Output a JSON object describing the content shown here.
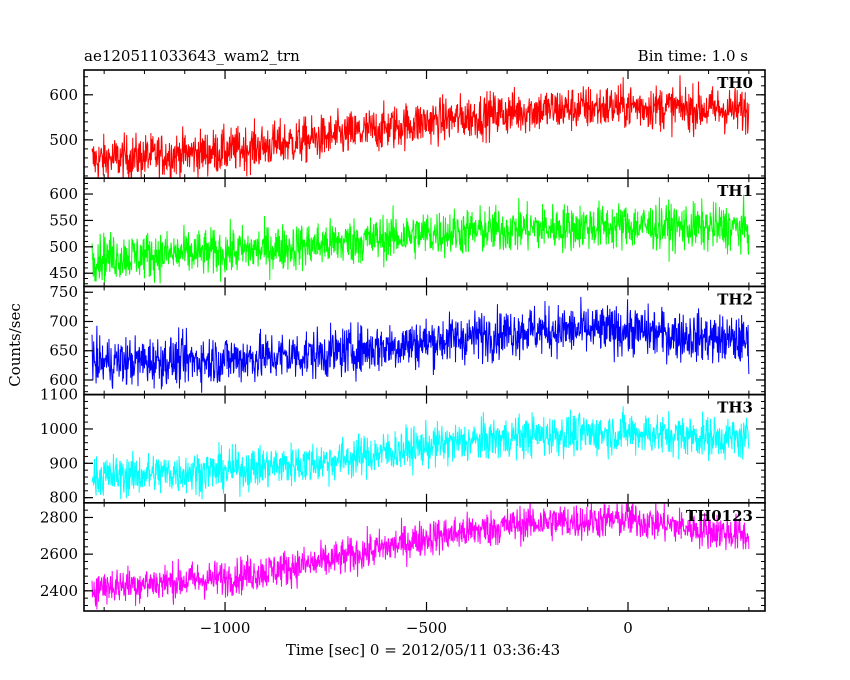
{
  "title_left": "ae120511033643_wam2_trn",
  "title_right": "Bin time: 1.0 s",
  "xlabel": "Time [sec] 0 = 2012/05/11 03:36:43",
  "ylabel": "Counts/sec",
  "chart_data": {
    "type": "line",
    "x_range": [
      -1350,
      340
    ],
    "x_ticks": [
      -1000,
      -500,
      0
    ],
    "x_tick_labels": [
      "−1000",
      "−500",
      "0"
    ],
    "x_data_range": [
      -1330,
      300
    ],
    "bin_time_s": 1.0,
    "panels": [
      {
        "name": "TH0",
        "color": "#ff0000",
        "ylim": [
          415,
          655
        ],
        "yticks": [
          500,
          600
        ],
        "trend": [
          [
            -1330,
            455
          ],
          [
            -1000,
            475
          ],
          [
            -750,
            505
          ],
          [
            -500,
            540
          ],
          [
            -250,
            565
          ],
          [
            0,
            575
          ],
          [
            300,
            565
          ]
        ],
        "noise_amplitude": 45
      },
      {
        "name": "TH1",
        "color": "#00ff00",
        "ylim": [
          425,
          630
        ],
        "yticks": [
          450,
          500,
          550,
          600
        ],
        "trend": [
          [
            -1330,
            480
          ],
          [
            -1000,
            490
          ],
          [
            -750,
            505
          ],
          [
            -500,
            525
          ],
          [
            -250,
            535
          ],
          [
            0,
            540
          ],
          [
            300,
            535
          ]
        ],
        "noise_amplitude": 40
      },
      {
        "name": "TH2",
        "color": "#0000ff",
        "ylim": [
          575,
          760
        ],
        "yticks": [
          600,
          650,
          700,
          750
        ],
        "trend": [
          [
            -1330,
            630
          ],
          [
            -1000,
            635
          ],
          [
            -750,
            645
          ],
          [
            -500,
            665
          ],
          [
            -250,
            685
          ],
          [
            0,
            685
          ],
          [
            300,
            665
          ]
        ],
        "noise_amplitude": 38
      },
      {
        "name": "TH3",
        "color": "#00ffff",
        "ylim": [
          785,
          1100
        ],
        "yticks": [
          800,
          900,
          1000,
          1100
        ],
        "trend": [
          [
            -1330,
            860
          ],
          [
            -1000,
            880
          ],
          [
            -750,
            905
          ],
          [
            -500,
            950
          ],
          [
            -250,
            980
          ],
          [
            0,
            990
          ],
          [
            300,
            970
          ]
        ],
        "noise_amplitude": 55
      },
      {
        "name": "TH0123",
        "color": "#ff00ff",
        "ylim": [
          2290,
          2880
        ],
        "yticks": [
          2400,
          2600,
          2800
        ],
        "trend": [
          [
            -1330,
            2420
          ],
          [
            -1000,
            2470
          ],
          [
            -750,
            2560
          ],
          [
            -500,
            2690
          ],
          [
            -250,
            2770
          ],
          [
            0,
            2790
          ],
          [
            300,
            2700
          ]
        ],
        "noise_amplitude": 90
      }
    ]
  }
}
